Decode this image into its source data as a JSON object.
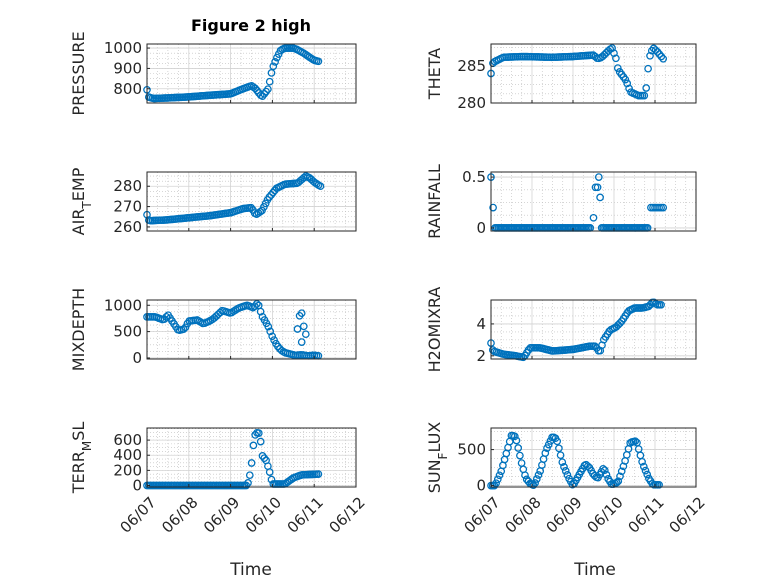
{
  "figure_title": "Figure 2 high",
  "colors": {
    "marker": "#0072BD",
    "axis": "#262626",
    "grid": "#d3d3d3"
  },
  "x_tick_labels": [
    "06/07",
    "06/08",
    "06/09",
    "06/10",
    "06/11",
    "06/12"
  ],
  "x_axis_label": "Time",
  "chart_data": [
    {
      "type": "scatter",
      "name": "PRESSURE",
      "ylabel": "PRESSURE",
      "xlim": [
        0,
        5
      ],
      "ylim": [
        730,
        1020
      ],
      "yticks": [
        800,
        900,
        1000
      ],
      "grid": true,
      "marker": "circle",
      "knots": [
        [
          0,
          795
        ],
        [
          0.03,
          760
        ],
        [
          0.15,
          752
        ],
        [
          0.5,
          755
        ],
        [
          1.0,
          760
        ],
        [
          1.5,
          768
        ],
        [
          2.0,
          775
        ],
        [
          2.3,
          800
        ],
        [
          2.5,
          815
        ],
        [
          2.6,
          800
        ],
        [
          2.75,
          760
        ],
        [
          2.9,
          800
        ],
        [
          3.0,
          900
        ],
        [
          3.1,
          950
        ],
        [
          3.2,
          990
        ],
        [
          3.3,
          1000
        ],
        [
          3.5,
          1000
        ],
        [
          3.6,
          992
        ],
        [
          3.75,
          975
        ],
        [
          3.85,
          960
        ],
        [
          4.0,
          940
        ],
        [
          4.1,
          935
        ]
      ],
      "samples": 96
    },
    {
      "type": "scatter",
      "name": "THETA",
      "ylabel": "THETA",
      "xlim": [
        0,
        5
      ],
      "ylim": [
        280,
        288
      ],
      "yticks": [
        280,
        285
      ],
      "grid": true,
      "marker": "circle",
      "knots": [
        [
          0,
          284
        ],
        [
          0.05,
          285.5
        ],
        [
          0.3,
          286.2
        ],
        [
          0.8,
          286.3
        ],
        [
          1.5,
          286.2
        ],
        [
          2.0,
          286.3
        ],
        [
          2.5,
          286.5
        ],
        [
          2.6,
          286
        ],
        [
          2.7,
          286.2
        ],
        [
          2.85,
          287
        ],
        [
          2.95,
          287.5
        ],
        [
          3.05,
          286
        ],
        [
          3.1,
          284.5
        ],
        [
          3.3,
          283
        ],
        [
          3.4,
          281.5
        ],
        [
          3.6,
          281
        ],
        [
          3.75,
          281
        ],
        [
          3.8,
          282.5
        ],
        [
          3.85,
          286
        ],
        [
          3.95,
          287.5
        ],
        [
          4.05,
          287
        ],
        [
          4.2,
          286
        ]
      ],
      "samples": 92
    },
    {
      "type": "scatter",
      "name": "AIR_TEMP",
      "ylabel": "AIR_T EMP",
      "xlim": [
        0,
        5
      ],
      "ylim": [
        258,
        287
      ],
      "yticks": [
        260,
        270,
        280
      ],
      "grid": true,
      "marker": "circle",
      "knots": [
        [
          0,
          266
        ],
        [
          0.05,
          263
        ],
        [
          0.5,
          263.5
        ],
        [
          1.0,
          264.5
        ],
        [
          1.5,
          265.5
        ],
        [
          2.0,
          267
        ],
        [
          2.3,
          269
        ],
        [
          2.5,
          269.5
        ],
        [
          2.6,
          266
        ],
        [
          2.75,
          268
        ],
        [
          2.9,
          274
        ],
        [
          3.1,
          279
        ],
        [
          3.3,
          281
        ],
        [
          3.6,
          281.5
        ],
        [
          3.8,
          285
        ],
        [
          3.9,
          284
        ],
        [
          4.0,
          282
        ],
        [
          4.15,
          280
        ]
      ],
      "samples": 96
    },
    {
      "type": "scatter",
      "name": "RAINFALL",
      "ylabel": "RAINFALL",
      "xlim": [
        0,
        5
      ],
      "ylim": [
        -0.03,
        0.55
      ],
      "yticks": [
        0,
        0.5
      ],
      "yticklabels": [
        "0",
        "0.5"
      ],
      "grid": true,
      "marker": "circle",
      "points": [
        [
          0,
          0.5
        ],
        [
          0.05,
          0.2
        ],
        [
          2.5,
          0.1
        ],
        [
          2.55,
          0.4
        ],
        [
          2.6,
          0.4
        ],
        [
          2.63,
          0.5
        ],
        [
          2.66,
          0.3
        ],
        [
          3.9,
          0.2
        ],
        [
          3.95,
          0.2
        ],
        [
          4.0,
          0.2
        ],
        [
          4.05,
          0.2
        ],
        [
          4.1,
          0.2
        ],
        [
          4.15,
          0.2
        ],
        [
          4.2,
          0.2
        ]
      ],
      "zero_runs": [
        [
          0.1,
          2.45
        ],
        [
          2.7,
          3.85
        ]
      ],
      "zero_step": 0.04
    },
    {
      "type": "scatter",
      "name": "MIXDEPTH",
      "ylabel": "MIXDEPTH",
      "xlim": [
        0,
        5
      ],
      "ylim": [
        -20,
        1100
      ],
      "yticks": [
        0,
        500,
        1000
      ],
      "grid": true,
      "marker": "circle",
      "knots": [
        [
          0,
          780
        ],
        [
          0.2,
          780
        ],
        [
          0.4,
          720
        ],
        [
          0.5,
          820
        ],
        [
          0.6,
          700
        ],
        [
          0.75,
          520
        ],
        [
          0.9,
          550
        ],
        [
          1.0,
          700
        ],
        [
          1.2,
          720
        ],
        [
          1.35,
          650
        ],
        [
          1.5,
          700
        ],
        [
          1.6,
          750
        ],
        [
          1.8,
          900
        ],
        [
          2.0,
          850
        ],
        [
          2.2,
          950
        ],
        [
          2.4,
          1000
        ],
        [
          2.55,
          950
        ],
        [
          2.65,
          1050
        ],
        [
          2.75,
          800
        ],
        [
          2.9,
          600
        ],
        [
          3.0,
          400
        ],
        [
          3.1,
          250
        ],
        [
          3.2,
          150
        ],
        [
          3.3,
          100
        ],
        [
          3.4,
          80
        ],
        [
          3.55,
          50
        ],
        [
          3.7,
          60
        ],
        [
          3.85,
          40
        ],
        [
          4.0,
          50
        ],
        [
          4.1,
          40
        ]
      ],
      "extra_points": [
        [
          3.6,
          550
        ],
        [
          3.65,
          800
        ],
        [
          3.7,
          850
        ],
        [
          3.75,
          600
        ],
        [
          3.8,
          450
        ],
        [
          3.7,
          300
        ]
      ],
      "samples": 90
    },
    {
      "type": "scatter",
      "name": "H2OMIXRA",
      "ylabel": "H2OMIXRA",
      "xlim": [
        0,
        5
      ],
      "ylim": [
        1.8,
        5.5
      ],
      "yticks": [
        2,
        4
      ],
      "grid": true,
      "marker": "circle",
      "knots": [
        [
          0,
          2.8
        ],
        [
          0.05,
          2.3
        ],
        [
          0.3,
          2.1
        ],
        [
          0.6,
          2.0
        ],
        [
          0.8,
          1.9
        ],
        [
          0.95,
          2.5
        ],
        [
          1.2,
          2.5
        ],
        [
          1.5,
          2.3
        ],
        [
          2.0,
          2.4
        ],
        [
          2.2,
          2.5
        ],
        [
          2.4,
          2.6
        ],
        [
          2.55,
          2.6
        ],
        [
          2.65,
          2.2
        ],
        [
          2.75,
          3.0
        ],
        [
          2.9,
          3.6
        ],
        [
          3.05,
          3.8
        ],
        [
          3.2,
          4.2
        ],
        [
          3.35,
          4.8
        ],
        [
          3.5,
          5.0
        ],
        [
          3.7,
          5.0
        ],
        [
          3.85,
          5.1
        ],
        [
          3.95,
          5.4
        ],
        [
          4.05,
          5.2
        ],
        [
          4.15,
          5.2
        ]
      ],
      "samples": 96
    },
    {
      "type": "scatter",
      "name": "TERR_MSL",
      "ylabel": "TERR_M SL",
      "xlim": [
        0,
        5
      ],
      "ylim": [
        -20,
        760
      ],
      "yticks": [
        0,
        200,
        400,
        600
      ],
      "grid": true,
      "marker": "circle",
      "knots": [
        [
          0,
          0
        ],
        [
          2.4,
          0
        ],
        [
          2.45,
          100
        ],
        [
          2.5,
          280
        ],
        [
          2.55,
          550
        ],
        [
          2.6,
          700
        ],
        [
          2.7,
          690
        ],
        [
          2.75,
          400
        ],
        [
          2.85,
          330
        ],
        [
          2.95,
          150
        ],
        [
          3.0,
          20
        ],
        [
          3.3,
          20
        ],
        [
          3.5,
          100
        ],
        [
          3.7,
          140
        ],
        [
          4.1,
          150
        ]
      ],
      "samples": 96
    },
    {
      "type": "scatter",
      "name": "SUN_FLUX",
      "ylabel": "SUN_F LUX",
      "xlim": [
        0,
        5
      ],
      "ylim": [
        -20,
        800
      ],
      "yticks": [
        0,
        500
      ],
      "grid": true,
      "marker": "circle",
      "knots": [
        [
          0,
          0
        ],
        [
          0.1,
          0
        ],
        [
          0.25,
          200
        ],
        [
          0.4,
          500
        ],
        [
          0.5,
          700
        ],
        [
          0.6,
          680
        ],
        [
          0.75,
          300
        ],
        [
          0.85,
          100
        ],
        [
          0.95,
          30
        ],
        [
          1.05,
          0
        ],
        [
          1.2,
          200
        ],
        [
          1.35,
          500
        ],
        [
          1.5,
          680
        ],
        [
          1.6,
          650
        ],
        [
          1.75,
          300
        ],
        [
          1.9,
          100
        ],
        [
          2.0,
          0
        ],
        [
          2.15,
          150
        ],
        [
          2.3,
          300
        ],
        [
          2.4,
          250
        ],
        [
          2.5,
          150
        ],
        [
          2.6,
          100
        ],
        [
          2.75,
          250
        ],
        [
          2.85,
          100
        ],
        [
          2.95,
          10
        ],
        [
          3.1,
          50
        ],
        [
          3.25,
          300
        ],
        [
          3.4,
          600
        ],
        [
          3.55,
          620
        ],
        [
          3.7,
          300
        ],
        [
          3.85,
          100
        ],
        [
          3.95,
          10
        ],
        [
          4.1,
          10
        ]
      ],
      "samples": 100
    }
  ]
}
